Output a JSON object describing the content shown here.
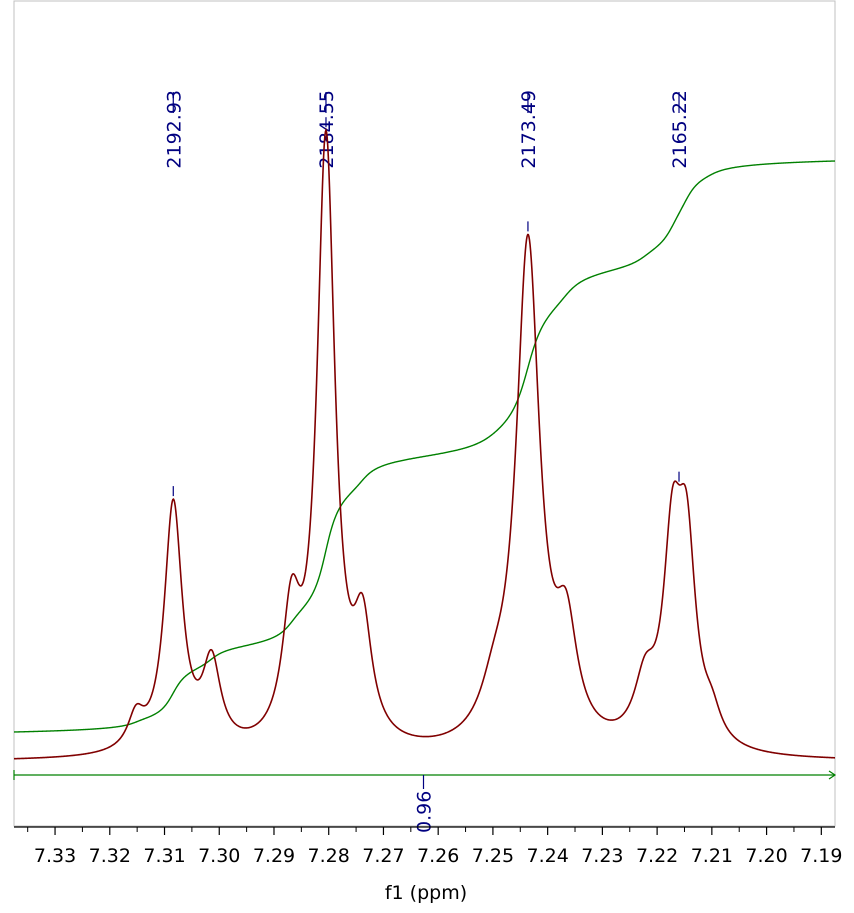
{
  "chart_data": {
    "type": "line",
    "title": "",
    "xlabel": "f1 (ppm)",
    "ylabel": "",
    "xlim": [
      7.3375,
      7.1875
    ],
    "x_reversed": true,
    "x_ticks": [
      "7.33",
      "7.32",
      "7.31",
      "7.30",
      "7.29",
      "7.28",
      "7.27",
      "7.26",
      "7.25",
      "7.24",
      "7.23",
      "7.22",
      "7.21",
      "7.20",
      "7.19"
    ],
    "grid": false,
    "spectrum_color": "#800000",
    "integral_color": "#008000",
    "label_color": "#000080",
    "peak_labels": [
      {
        "label": "2192.93",
        "ppm": 7.3084
      },
      {
        "label": "2184.55",
        "ppm": 7.2805
      },
      {
        "label": "2173.49",
        "ppm": 7.2436
      },
      {
        "label": "2165.22",
        "ppm": 7.216
      }
    ],
    "peaks": [
      {
        "ppm": 7.3152,
        "height": 0.05,
        "width": 0.0018
      },
      {
        "ppm": 7.3084,
        "height": 0.39,
        "width": 0.002
      },
      {
        "ppm": 7.3014,
        "height": 0.13,
        "width": 0.002
      },
      {
        "ppm": 7.2868,
        "height": 0.19,
        "width": 0.002
      },
      {
        "ppm": 7.2805,
        "height": 0.95,
        "width": 0.002
      },
      {
        "ppm": 7.2738,
        "height": 0.17,
        "width": 0.002
      },
      {
        "ppm": 7.2498,
        "height": 0.06,
        "width": 0.003
      },
      {
        "ppm": 7.2436,
        "height": 0.79,
        "width": 0.0026
      },
      {
        "ppm": 7.2366,
        "height": 0.16,
        "width": 0.0024
      },
      {
        "ppm": 7.2222,
        "height": 0.09,
        "width": 0.0024
      },
      {
        "ppm": 7.2172,
        "height": 0.29,
        "width": 0.002
      },
      {
        "ppm": 7.2146,
        "height": 0.29,
        "width": 0.002
      },
      {
        "ppm": 7.21,
        "height": 0.04,
        "width": 0.002
      }
    ],
    "integral": {
      "value": "0.96",
      "from_ppm": 7.3375,
      "to_ppm": 7.1875
    }
  }
}
